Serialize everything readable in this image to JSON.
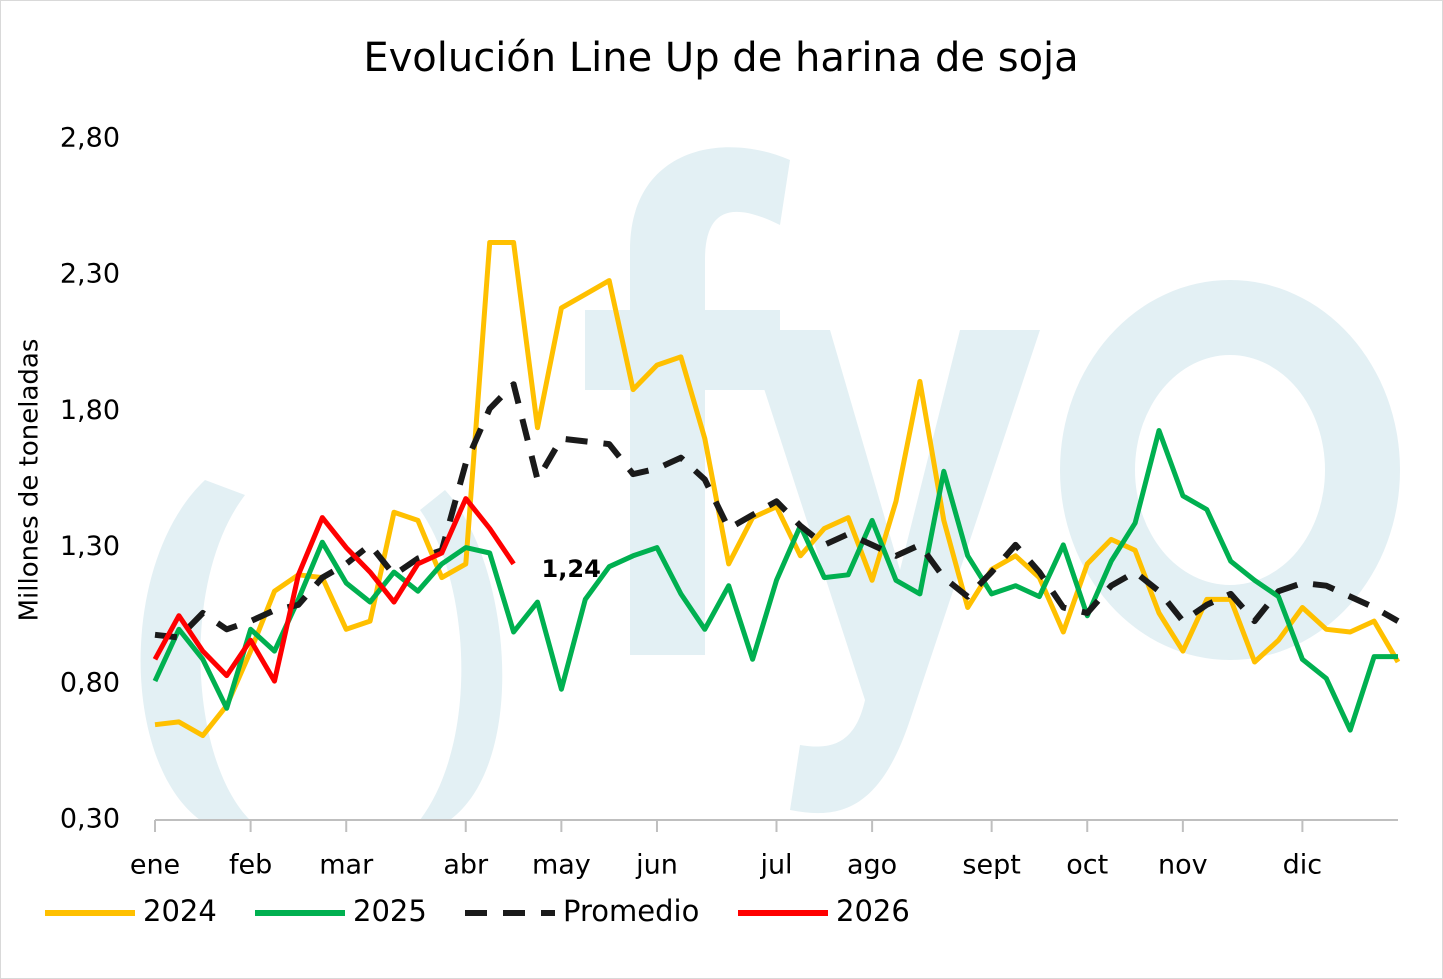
{
  "chart_data": {
    "type": "line",
    "title": "Evolución Line Up de harina de soja",
    "y_label": "Millones de toneladas",
    "categories": [
      "ene",
      null,
      null,
      null,
      "feb",
      null,
      null,
      null,
      "mar",
      null,
      null,
      null,
      null,
      "abr",
      null,
      null,
      null,
      "may",
      null,
      null,
      null,
      "jun",
      null,
      null,
      null,
      null,
      "jul",
      null,
      null,
      null,
      "ago",
      null,
      null,
      null,
      null,
      "sept",
      null,
      null,
      null,
      "oct",
      null,
      null,
      null,
      "nov",
      null,
      null,
      null,
      null,
      "dic",
      null,
      null,
      null,
      null
    ],
    "ylim": [
      0.3,
      2.8
    ],
    "yticks": [
      {
        "value": 0.3,
        "label": "0,30"
      },
      {
        "value": 0.8,
        "label": "0,80"
      },
      {
        "value": 1.3,
        "label": "1,30"
      },
      {
        "value": 1.8,
        "label": "1,80"
      },
      {
        "value": 2.3,
        "label": "2,30"
      },
      {
        "value": 2.8,
        "label": "2,80"
      }
    ],
    "grid": false,
    "legend": "bottom",
    "series": [
      {
        "name": "2024",
        "color": "#ffc000",
        "style": "solid",
        "values": [
          0.65,
          0.66,
          0.61,
          0.72,
          0.92,
          1.14,
          1.2,
          1.19,
          1.0,
          1.03,
          1.43,
          1.4,
          1.19,
          1.24,
          2.42,
          2.42,
          1.74,
          2.18,
          2.23,
          2.28,
          1.88,
          1.97,
          2.0,
          1.7,
          1.24,
          1.41,
          1.45,
          1.27,
          1.37,
          1.41,
          1.18,
          1.47,
          1.91,
          1.4,
          1.08,
          1.22,
          1.27,
          1.19,
          0.99,
          1.24,
          1.33,
          1.29,
          1.06,
          0.92,
          1.11,
          1.11,
          0.88,
          0.96,
          1.08,
          1.0,
          0.99,
          1.03,
          0.88
        ]
      },
      {
        "name": "2025",
        "color": "#00b050",
        "style": "solid",
        "values": [
          0.81,
          1.0,
          0.89,
          0.71,
          1.0,
          0.92,
          1.11,
          1.32,
          1.17,
          1.1,
          1.21,
          1.14,
          1.24,
          1.3,
          1.28,
          0.99,
          1.1,
          0.78,
          1.11,
          1.23,
          1.27,
          1.3,
          1.13,
          1.0,
          1.16,
          0.89,
          1.18,
          1.38,
          1.19,
          1.2,
          1.4,
          1.18,
          1.13,
          1.58,
          1.27,
          1.13,
          1.16,
          1.12,
          1.31,
          1.05,
          1.25,
          1.39,
          1.73,
          1.49,
          1.44,
          1.25,
          1.18,
          1.12,
          0.89,
          0.82,
          0.63,
          0.9,
          0.9
        ]
      },
      {
        "name": "Promedio",
        "color": "#1a1a1a",
        "style": "dashed",
        "values": [
          0.98,
          0.97,
          1.06,
          1.0,
          1.03,
          1.07,
          1.09,
          1.19,
          1.24,
          1.31,
          1.2,
          1.26,
          1.29,
          1.61,
          1.81,
          1.9,
          1.55,
          1.7,
          1.69,
          1.68,
          1.57,
          1.59,
          1.63,
          1.55,
          1.37,
          1.42,
          1.47,
          1.38,
          1.31,
          1.35,
          1.31,
          1.27,
          1.31,
          1.19,
          1.12,
          1.21,
          1.31,
          1.21,
          1.08,
          1.06,
          1.16,
          1.21,
          1.14,
          1.03,
          1.09,
          1.13,
          1.03,
          1.14,
          1.17,
          1.16,
          1.12,
          1.08,
          1.03
        ]
      },
      {
        "name": "2026",
        "color": "#ff0000",
        "style": "solid",
        "values": [
          0.89,
          1.05,
          0.92,
          0.83,
          0.96,
          0.81,
          1.2,
          1.41,
          1.3,
          1.21,
          1.1,
          1.24,
          1.28,
          1.48,
          1.37,
          1.24,
          null,
          null,
          null,
          null,
          null,
          null,
          null,
          null,
          null,
          null,
          null,
          null,
          null,
          null,
          null,
          null,
          null,
          null,
          null,
          null,
          null,
          null,
          null,
          null,
          null,
          null,
          null,
          null,
          null,
          null,
          null,
          null,
          null,
          null,
          null,
          null,
          null
        ],
        "value_labels": [
          null,
          null,
          null,
          null,
          null,
          null,
          null,
          null,
          null,
          null,
          null,
          null,
          null,
          null,
          null,
          "1,24",
          null,
          null,
          null,
          null,
          null,
          null,
          null,
          null,
          null,
          null,
          null,
          null,
          null,
          null,
          null,
          null,
          null,
          null,
          null,
          null,
          null,
          null,
          null,
          null,
          null,
          null,
          null,
          null,
          null,
          null,
          null,
          null,
          null,
          null,
          null,
          null,
          null
        ]
      }
    ]
  }
}
